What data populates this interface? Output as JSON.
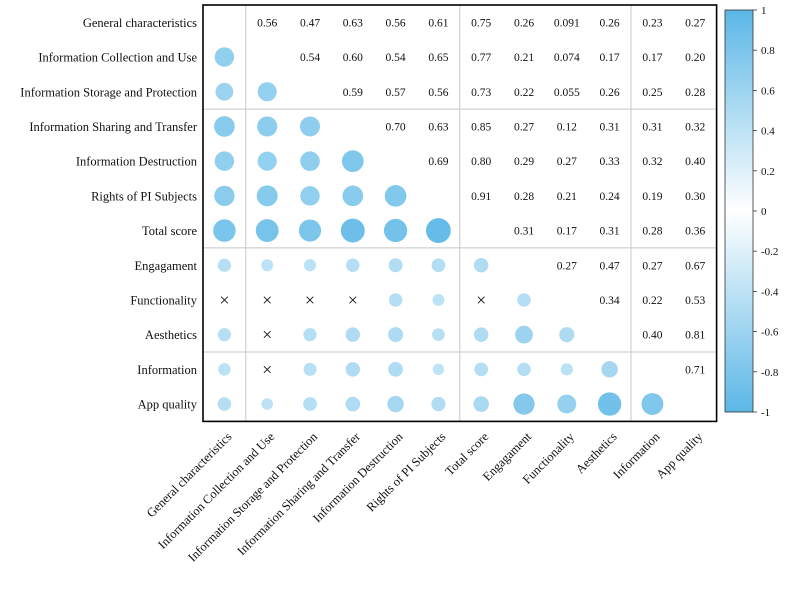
{
  "chart_data": {
    "type": "heatmap",
    "variables": [
      "General characteristics",
      "Information Collection and Use",
      "Information Storage and Protection",
      "Information Sharing and Transfer",
      "Information Destruction",
      "Rights of PI Subjects",
      "Total score",
      "Engagament",
      "Functionality",
      "Aesthetics",
      "Information",
      "App quality"
    ],
    "matrix": [
      [
        null,
        0.56,
        0.47,
        0.63,
        0.56,
        0.61,
        0.75,
        0.26,
        0.091,
        0.26,
        0.23,
        0.27
      ],
      [
        0.56,
        null,
        0.54,
        0.6,
        0.54,
        0.65,
        0.77,
        0.21,
        0.074,
        0.17,
        0.17,
        0.2
      ],
      [
        0.47,
        0.54,
        null,
        0.59,
        0.57,
        0.56,
        0.73,
        0.22,
        0.055,
        0.26,
        0.25,
        0.28
      ],
      [
        0.63,
        0.6,
        0.59,
        null,
        0.7,
        0.63,
        0.85,
        0.27,
        0.12,
        0.31,
        0.31,
        0.32
      ],
      [
        0.56,
        0.54,
        0.57,
        0.7,
        null,
        0.69,
        0.8,
        0.29,
        0.27,
        0.33,
        0.32,
        0.4
      ],
      [
        0.61,
        0.65,
        0.56,
        0.63,
        0.69,
        null,
        0.91,
        0.28,
        0.21,
        0.24,
        0.19,
        0.3
      ],
      [
        0.75,
        0.77,
        0.73,
        0.85,
        0.8,
        0.91,
        null,
        0.31,
        0.17,
        0.31,
        0.28,
        0.36
      ],
      [
        0.26,
        0.21,
        0.22,
        0.27,
        0.29,
        0.28,
        0.31,
        null,
        0.27,
        0.47,
        0.27,
        0.67
      ],
      [
        0.091,
        0.074,
        0.055,
        0.12,
        0.27,
        0.21,
        0.17,
        0.27,
        null,
        0.34,
        0.22,
        0.53
      ],
      [
        0.26,
        0.17,
        0.26,
        0.31,
        0.33,
        0.24,
        0.31,
        0.47,
        0.34,
        null,
        0.4,
        0.81
      ],
      [
        0.23,
        0.17,
        0.25,
        0.31,
        0.32,
        0.19,
        0.28,
        0.27,
        0.22,
        0.4,
        null,
        0.71
      ],
      [
        0.27,
        0.2,
        0.28,
        0.32,
        0.4,
        0.3,
        0.36,
        0.67,
        0.53,
        0.81,
        0.71,
        null
      ]
    ],
    "non_significant_lower": [
      [
        8,
        0
      ],
      [
        8,
        1
      ],
      [
        8,
        2
      ],
      [
        8,
        3
      ],
      [
        8,
        6
      ],
      [
        9,
        1
      ],
      [
        10,
        1
      ]
    ],
    "upper_triangle": "numbers",
    "lower_triangle": "circles",
    "colorbar": {
      "range": [
        -1,
        1
      ],
      "ticks": [
        "1",
        "0.8",
        "0.6",
        "0.4",
        "0.2",
        "0",
        "-0.2",
        "-0.4",
        "-0.6",
        "-0.8",
        "-1"
      ],
      "color_positive": "#5bb7e6",
      "color_zero": "#ffffff",
      "color_negative": "#5bb7e6"
    },
    "mark_color": "#5bb7e6",
    "grid_color": "#c8c8c8",
    "nonsig_symbol": "×"
  }
}
